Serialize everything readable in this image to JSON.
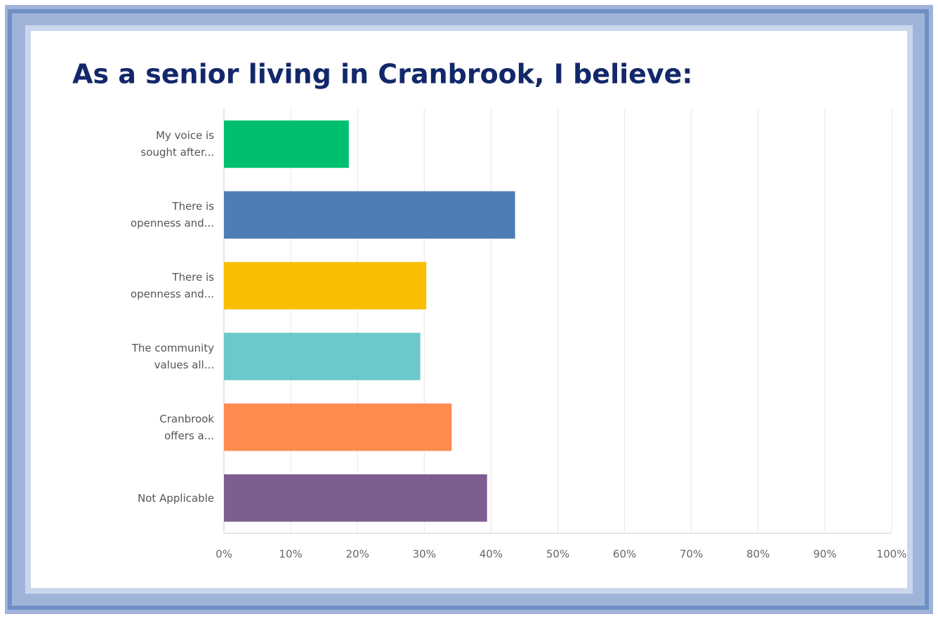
{
  "chart_data": {
    "type": "bar",
    "orientation": "horizontal",
    "title": "As a senior living in Cranbrook, I believe:",
    "categories": [
      "My voice is\nsought after...",
      "There is\nopenness and...",
      "There is\nopenness and...",
      "The community\nvalues all...",
      "Cranbrook\noffers a...",
      "Not Applicable"
    ],
    "values": [
      18.7,
      43.6,
      30.3,
      29.4,
      34.1,
      39.4
    ],
    "colors": [
      "#00bf6f",
      "#507cb6",
      "#f9be00",
      "#6bc8cd",
      "#ff8b4f",
      "#7d5e90"
    ],
    "xlim": [
      0,
      100
    ],
    "xticks": [
      {
        "value": 0,
        "label": "0%"
      },
      {
        "value": 10,
        "label": "10%"
      },
      {
        "value": 20,
        "label": "20%"
      },
      {
        "value": 30,
        "label": "30%"
      },
      {
        "value": 40,
        "label": "40%"
      },
      {
        "value": 50,
        "label": "50%"
      },
      {
        "value": 60,
        "label": "60%"
      },
      {
        "value": 70,
        "label": "70%"
      },
      {
        "value": 80,
        "label": "80%"
      },
      {
        "value": 90,
        "label": "90%"
      },
      {
        "value": 100,
        "label": "100%"
      }
    ],
    "grid": true
  }
}
